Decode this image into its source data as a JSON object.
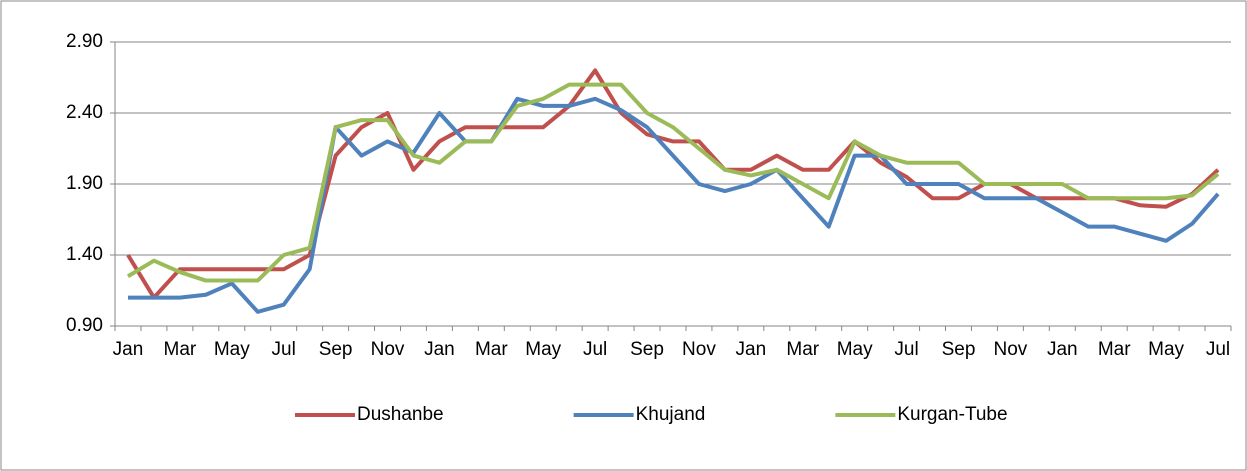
{
  "chart_data": {
    "type": "line",
    "categories": [
      "Jan",
      null,
      "Mar",
      null,
      "May",
      null,
      "Jul",
      null,
      "Sep",
      null,
      "Nov",
      null,
      "Jan",
      null,
      "Mar",
      null,
      "May",
      null,
      "Jul",
      null,
      "Sep",
      null,
      "Nov",
      null,
      "Jan",
      null,
      "Mar",
      null,
      "May",
      null,
      "Jul",
      null,
      "Sep",
      null,
      "Nov",
      null,
      "Jan",
      null,
      "Mar",
      null,
      "May",
      null,
      "Jul"
    ],
    "series": [
      {
        "name": "Dushanbe",
        "color": "#c0504d",
        "values": [
          1.4,
          1.1,
          1.3,
          1.3,
          1.3,
          1.3,
          1.3,
          1.4,
          2.1,
          2.3,
          2.4,
          2.0,
          2.2,
          2.3,
          2.3,
          2.3,
          2.3,
          2.45,
          2.7,
          2.4,
          2.25,
          2.2,
          2.2,
          2.0,
          2.0,
          2.1,
          2.0,
          2.0,
          2.2,
          2.05,
          1.95,
          1.8,
          1.8,
          1.9,
          1.9,
          1.8,
          1.8,
          1.8,
          1.8,
          1.75,
          1.74,
          1.83,
          2.0
        ]
      },
      {
        "name": "Khujand",
        "color": "#4f81bd",
        "values": [
          1.1,
          1.1,
          1.1,
          1.12,
          1.2,
          1.0,
          1.05,
          1.3,
          2.3,
          2.1,
          2.2,
          2.12,
          2.4,
          2.2,
          2.2,
          2.5,
          2.45,
          2.45,
          2.5,
          2.42,
          2.3,
          2.1,
          1.9,
          1.85,
          1.9,
          2.0,
          1.8,
          1.6,
          2.1,
          2.1,
          1.9,
          1.9,
          1.9,
          1.8,
          1.8,
          1.8,
          1.7,
          1.6,
          1.6,
          1.55,
          1.5,
          1.62,
          1.83
        ]
      },
      {
        "name": "Kurgan-Tube",
        "color": "#9bbb59",
        "values": [
          1.25,
          1.36,
          1.28,
          1.22,
          1.22,
          1.22,
          1.4,
          1.45,
          2.3,
          2.35,
          2.35,
          2.1,
          2.05,
          2.2,
          2.2,
          2.45,
          2.5,
          2.6,
          2.6,
          2.6,
          2.4,
          2.3,
          2.15,
          2.0,
          1.96,
          2.0,
          1.9,
          1.8,
          2.2,
          2.1,
          2.05,
          2.05,
          2.05,
          1.9,
          1.9,
          1.9,
          1.9,
          1.8,
          1.8,
          1.8,
          1.8,
          1.82,
          1.97
        ]
      }
    ],
    "ylim": [
      0.9,
      2.9
    ],
    "yticks": [
      {
        "value": 0.9,
        "label": "0.90"
      },
      {
        "value": 1.4,
        "label": "1.40"
      },
      {
        "value": 1.9,
        "label": "1.90"
      },
      {
        "value": 2.4,
        "label": "2.40"
      },
      {
        "value": 2.9,
        "label": "2.90"
      }
    ],
    "grid": true,
    "legend": "bottom"
  }
}
